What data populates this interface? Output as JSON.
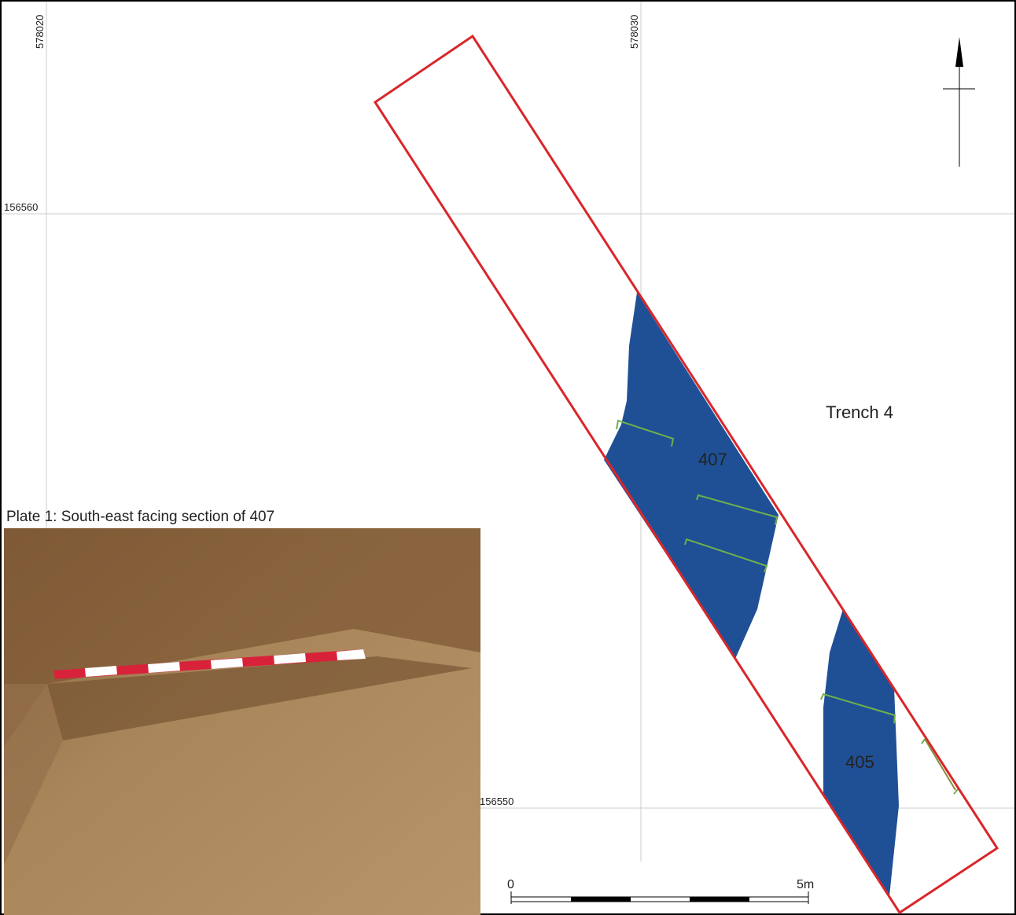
{
  "map": {
    "grid": {
      "eastings": [
        "578020",
        "578030"
      ],
      "northings": [
        "156560",
        "156550"
      ]
    },
    "trench_label": "Trench 4",
    "features": [
      "407",
      "405"
    ],
    "plate_caption": "Plate 1: South-east facing section of 407",
    "scale_bar": {
      "start": "0",
      "end": "5m"
    }
  }
}
